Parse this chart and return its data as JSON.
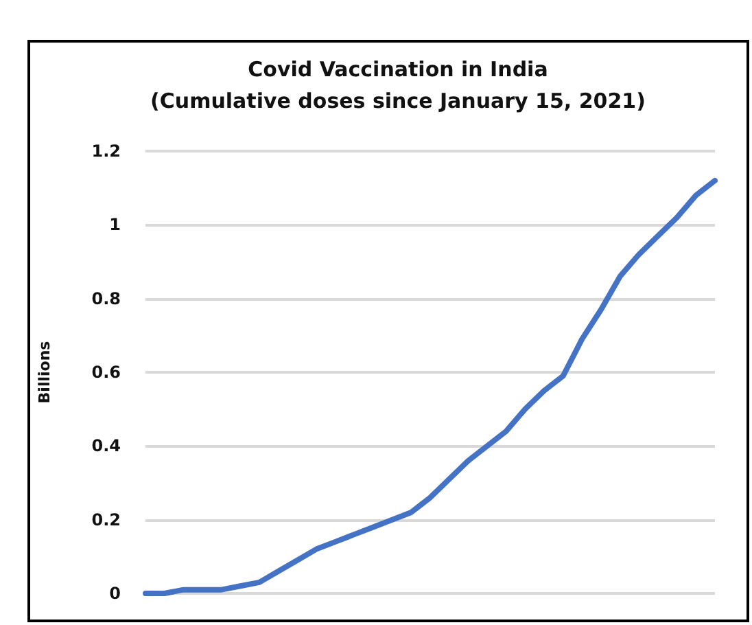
{
  "chart_data": {
    "type": "line",
    "title": "Covid Vaccination in India",
    "subtitle": "(Cumulative doses since January 15, 2021)",
    "ylabel": "Billions",
    "categories": [
      null,
      null,
      null,
      null,
      null,
      null,
      null,
      null,
      null,
      null,
      null,
      null,
      null,
      null,
      null,
      null,
      null,
      null,
      null,
      null,
      null,
      null,
      null,
      null,
      null,
      null,
      null,
      null,
      null,
      null,
      null
    ],
    "series": [
      {
        "color": "#4472c4",
        "values": [
          0.0,
          0.0,
          0.01,
          0.01,
          0.01,
          0.02,
          0.03,
          0.06,
          0.09,
          0.12,
          0.14,
          0.16,
          0.18,
          0.2,
          0.22,
          0.26,
          0.31,
          0.36,
          0.4,
          0.44,
          0.5,
          0.55,
          0.59,
          0.69,
          0.77,
          0.86,
          0.92,
          0.97,
          1.02,
          1.08,
          1.12
        ]
      }
    ],
    "ylim": [
      0,
      1.2
    ],
    "yticks": [
      0,
      0.2,
      0.4,
      0.6,
      0.8,
      1,
      1.2
    ],
    "grid": "y",
    "marker": "none",
    "line_style": "solid"
  }
}
